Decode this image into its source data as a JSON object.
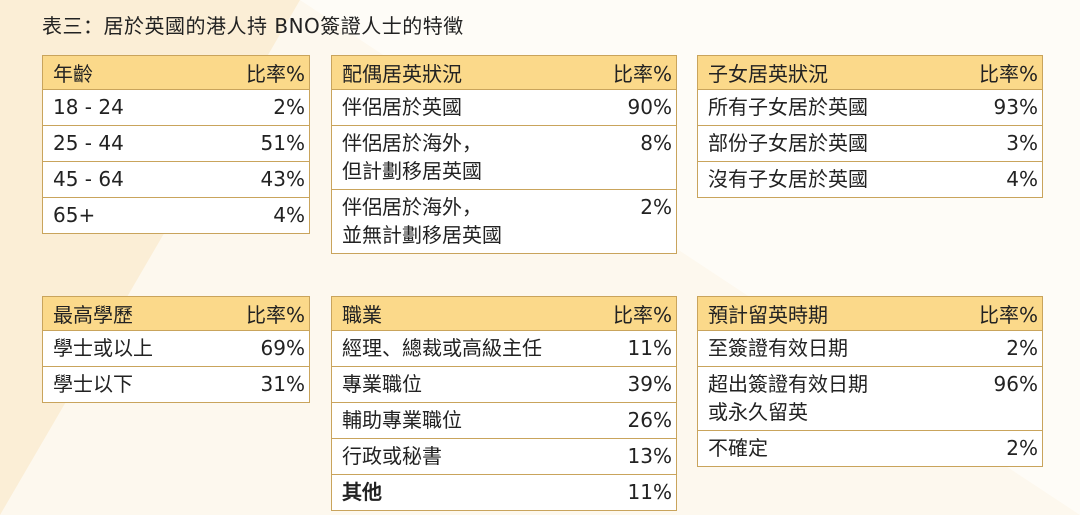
{
  "title": "表三：居於英國的港人持 BNO簽證人士的特徵",
  "tables": {
    "age": {
      "header": "年齡",
      "pct_header": "比率%",
      "rows": [
        {
          "label": "18 - 24",
          "value": "2%"
        },
        {
          "label": "25 - 44",
          "value": "51%"
        },
        {
          "label": "45 - 64",
          "value": "43%"
        },
        {
          "label": "65+",
          "value": "4%"
        }
      ]
    },
    "spouse": {
      "header": "配偶居英狀況",
      "pct_header": "比率%",
      "rows": [
        {
          "label": "伴侶居於英國",
          "value": "90%"
        },
        {
          "label": "伴侶居於海外，\n但計劃移居英國",
          "value": "8%"
        },
        {
          "label": "伴侶居於海外，\n並無計劃移居英國",
          "value": "2%"
        }
      ]
    },
    "children": {
      "header": "子女居英狀況",
      "pct_header": "比率%",
      "rows": [
        {
          "label": "所有子女居於英國",
          "value": "93%"
        },
        {
          "label": "部份子女居於英國",
          "value": "3%"
        },
        {
          "label": "沒有子女居於英國",
          "value": "4%"
        }
      ]
    },
    "education": {
      "header": "最高學歷",
      "pct_header": "比率%",
      "rows": [
        {
          "label": "學士或以上",
          "value": "69%"
        },
        {
          "label": "學士以下",
          "value": "31%"
        }
      ]
    },
    "occupation": {
      "header": "職業",
      "pct_header": "比率%",
      "rows": [
        {
          "label": "經理、總裁或高級主任",
          "value": "11%"
        },
        {
          "label": "專業職位",
          "value": "39%"
        },
        {
          "label": "輔助專業職位",
          "value": "26%"
        },
        {
          "label": "行政或秘書",
          "value": "13%"
        },
        {
          "label": "其他",
          "value": "11%"
        }
      ]
    },
    "stay": {
      "header": "預計留英時期",
      "pct_header": "比率%",
      "rows": [
        {
          "label": "至簽證有效日期",
          "value": "2%"
        },
        {
          "label": "超出簽證有效日期\n或永久留英",
          "value": "96%"
        },
        {
          "label": "不確定",
          "value": "2%"
        }
      ]
    }
  }
}
